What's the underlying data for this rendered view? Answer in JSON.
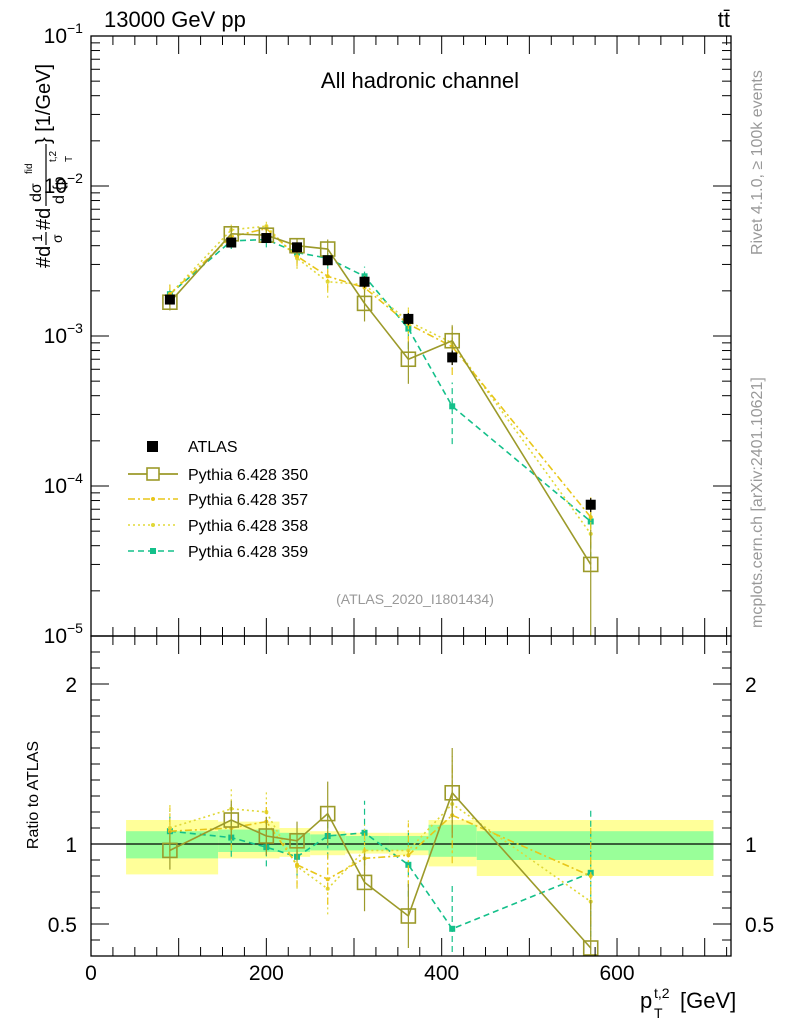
{
  "header": {
    "beam": "13000 GeV pp",
    "process": "tt̄"
  },
  "side_text": {
    "rivet": "Rivet 4.1.0, ≥ 100k events",
    "mcplots": "mcplots.cern.ch [arXiv:2401.10621]"
  },
  "colors": {
    "data": "#000000",
    "p350": "#9c9a2a",
    "p357": "#e8c619",
    "p358": "#e0d838",
    "p359": "#14c08a",
    "band_inner": "#99ff99",
    "band_outer": "#ffff99"
  },
  "chart_data": [
    {
      "type": "line",
      "panel": "main",
      "title": "All hadronic channel",
      "analysis_label": "(ATLAS_2020_I1801434)",
      "xlabel": "p_T^{t,2} [GeV]",
      "ylabel": "#d1/σ#d dσ^{fid}/d{p_T^{t,2}} [1/GeV]",
      "ylabel_parts": {
        "prefix": "#d",
        "frac1_num": "1",
        "frac1_den": "σ",
        "mid": "#d",
        "frac2_num": "dσ",
        "frac2_sup": "fid",
        "frac2_den": "d {p",
        "frac2_den_sub": "T",
        "frac2_den_sup": "t,2",
        "suffix": "} [1/GeV]"
      },
      "yscale": "log",
      "xlim": [
        0,
        730
      ],
      "ylim": [
        1e-05,
        0.1
      ],
      "yticks": [
        {
          "value": 0.1,
          "base": "10",
          "exp": "−1"
        },
        {
          "value": 0.01,
          "base": "10",
          "exp": "−2"
        },
        {
          "value": 0.001,
          "base": "10",
          "exp": "−3"
        },
        {
          "value": 0.0001,
          "base": "10",
          "exp": "−4"
        },
        {
          "value": 1e-05,
          "base": "10",
          "exp": "−5"
        }
      ],
      "x": [
        90,
        160,
        200,
        235,
        270,
        312,
        362,
        412,
        570
      ],
      "series": [
        {
          "name": "ATLAS",
          "key": "data",
          "style": "marker",
          "values": [
            0.00175,
            0.0042,
            0.0045,
            0.0039,
            0.0032,
            0.0023,
            0.0013,
            0.00072,
            7.5e-05
          ],
          "err": [
            0.00012,
            0.0003,
            0.0003,
            0.0003,
            0.00025,
            0.0002,
            0.00012,
            8e-05,
            8e-06
          ]
        },
        {
          "name": "Pythia 6.428 350",
          "key": "p350",
          "style": "solid",
          "values": [
            0.00168,
            0.0048,
            0.0047,
            0.004,
            0.0038,
            0.00165,
            0.0007,
            0.00093,
            3e-05
          ],
          "err": [
            0.0002,
            0.0005,
            0.0005,
            0.0005,
            0.0006,
            0.0004,
            0.00022,
            0.00025,
            2.1e-05
          ]
        },
        {
          "name": "Pythia 6.428 357",
          "key": "p357",
          "style": "dashdot",
          "values": [
            0.0019,
            0.0046,
            0.0052,
            0.0034,
            0.0025,
            0.0021,
            0.0012,
            0.00085,
            6.2e-05
          ],
          "err": [
            0.0003,
            0.0005,
            0.0006,
            0.0005,
            0.0005,
            0.0004,
            0.0003,
            0.0003,
            2.2e-05
          ]
        },
        {
          "name": "Pythia 6.428 358",
          "key": "p358",
          "style": "dotted",
          "values": [
            0.0019,
            0.0051,
            0.0054,
            0.0033,
            0.0023,
            0.0022,
            0.00125,
            0.0009,
            4.8e-05
          ],
          "err": [
            0.0003,
            0.0005,
            0.0006,
            0.0005,
            0.0005,
            0.0004,
            0.0003,
            0.0003,
            2e-05
          ]
        },
        {
          "name": "Pythia 6.428 359",
          "key": "p359",
          "style": "dashed",
          "values": [
            0.0019,
            0.0043,
            0.0044,
            0.0036,
            0.0033,
            0.0025,
            0.00112,
            0.00034,
            5.8e-05
          ],
          "err": [
            0.0003,
            0.0005,
            0.0005,
            0.0005,
            0.0005,
            0.0004,
            0.0003,
            0.00015,
            2.5e-05
          ]
        }
      ]
    },
    {
      "type": "line",
      "panel": "ratio",
      "ylabel": "Ratio to ATLAS",
      "xlim": [
        0,
        730
      ],
      "ylim": [
        0.3,
        2.3
      ],
      "xticks": [
        0,
        200,
        400,
        600
      ],
      "yticks": [
        0.5,
        1,
        2
      ],
      "ytick_labels": [
        "0.5",
        "1",
        "2"
      ],
      "bands": [
        {
          "x0": 40,
          "x1": 145,
          "inner": [
            0.91,
            1.08
          ],
          "outer": [
            0.81,
            1.15
          ]
        },
        {
          "x0": 145,
          "x1": 215,
          "inner": [
            0.95,
            1.09
          ],
          "outer": [
            0.91,
            1.14
          ]
        },
        {
          "x0": 215,
          "x1": 250,
          "inner": [
            0.95,
            1.07
          ],
          "outer": [
            0.92,
            1.1
          ]
        },
        {
          "x0": 250,
          "x1": 290,
          "inner": [
            0.96,
            1.06
          ],
          "outer": [
            0.93,
            1.08
          ]
        },
        {
          "x0": 290,
          "x1": 340,
          "inner": [
            0.96,
            1.05
          ],
          "outer": [
            0.94,
            1.07
          ]
        },
        {
          "x0": 340,
          "x1": 385,
          "inner": [
            0.96,
            1.05
          ],
          "outer": [
            0.93,
            1.07
          ]
        },
        {
          "x0": 385,
          "x1": 440,
          "inner": [
            0.92,
            1.12
          ],
          "outer": [
            0.86,
            1.15
          ]
        },
        {
          "x0": 440,
          "x1": 710,
          "inner": [
            0.9,
            1.08
          ],
          "outer": [
            0.8,
            1.15
          ]
        }
      ],
      "series": [
        {
          "name": "Pythia 6.428 350",
          "key": "p350",
          "style": "solid",
          "values": [
            0.96,
            1.15,
            1.05,
            1.02,
            1.19,
            0.76,
            0.55,
            1.32,
            0.35
          ],
          "err": [
            0.12,
            0.12,
            0.12,
            0.12,
            0.2,
            0.18,
            0.2,
            0.28,
            0.3
          ]
        },
        {
          "name": "Pythia 6.428 357",
          "key": "p357",
          "style": "dashdot",
          "values": [
            1.08,
            1.1,
            1.14,
            0.87,
            0.78,
            0.91,
            0.93,
            1.18,
            0.8
          ],
          "err": [
            0.15,
            0.14,
            0.14,
            0.14,
            0.16,
            0.16,
            0.2,
            0.3,
            0.3
          ]
        },
        {
          "name": "Pythia 6.428 358",
          "key": "p358",
          "style": "dotted",
          "values": [
            1.1,
            1.22,
            1.2,
            0.86,
            0.72,
            0.96,
            0.96,
            1.25,
            0.64
          ],
          "err": [
            0.15,
            0.14,
            0.14,
            0.14,
            0.16,
            0.16,
            0.2,
            0.3,
            0.3
          ]
        },
        {
          "name": "Pythia 6.428 359",
          "key": "p359",
          "style": "dashed",
          "values": [
            1.08,
            1.04,
            0.98,
            0.92,
            1.05,
            1.07,
            0.87,
            0.47,
            0.82
          ],
          "err": [
            0.13,
            0.12,
            0.12,
            0.12,
            0.14,
            0.2,
            0.2,
            0.27,
            0.4
          ]
        }
      ]
    }
  ]
}
